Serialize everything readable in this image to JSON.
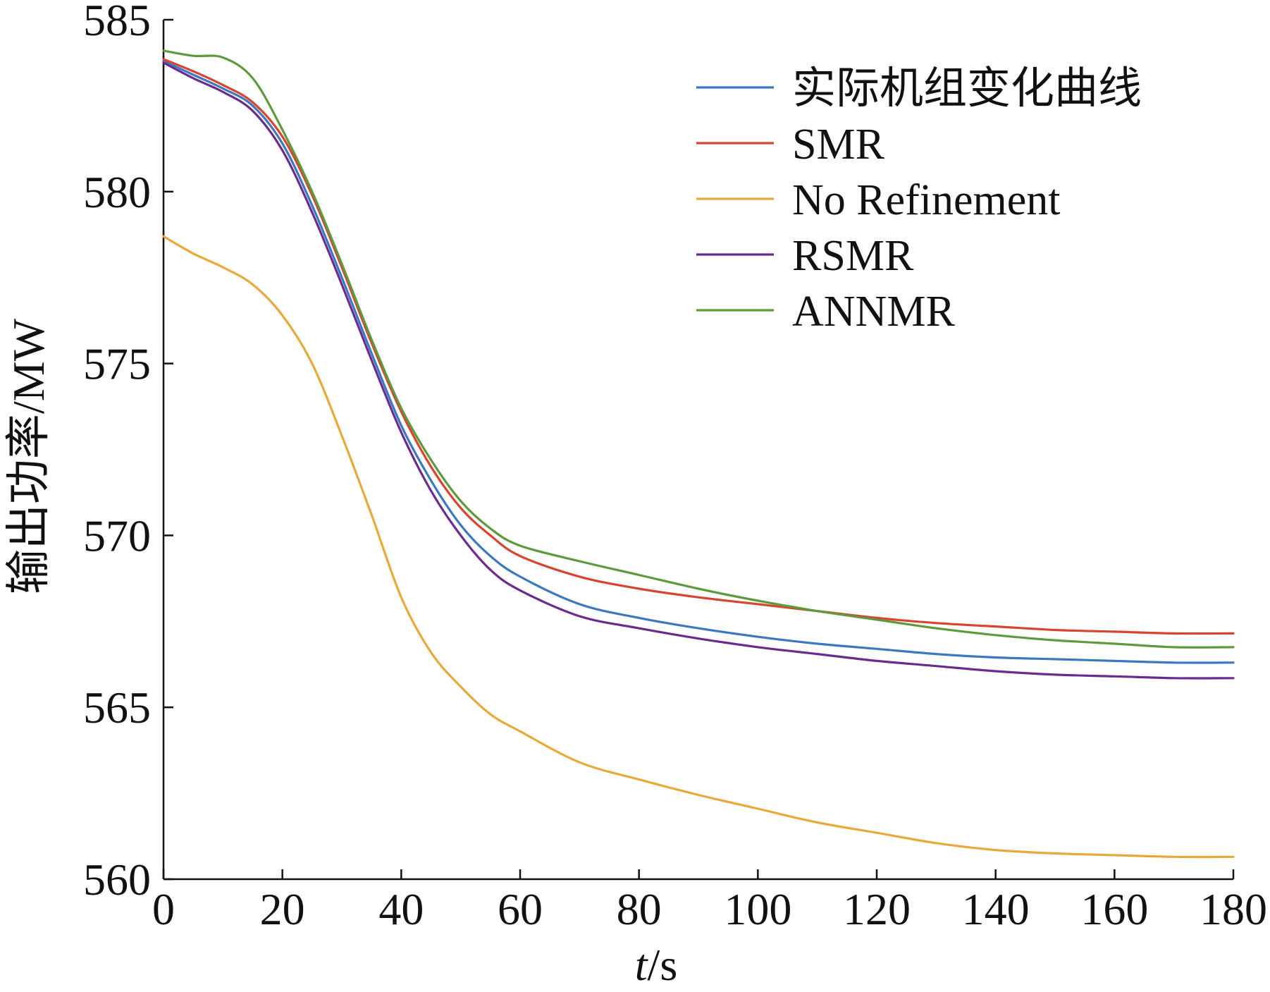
{
  "chart_data": {
    "type": "line",
    "xlabel": "t/s",
    "xlabel_italic_part": "t",
    "xlabel_rest": "/s",
    "ylabel": "输出功率/MW",
    "xlim": [
      0,
      180
    ],
    "ylim": [
      560,
      585
    ],
    "x_ticks": [
      0,
      20,
      40,
      60,
      80,
      100,
      120,
      140,
      160,
      180
    ],
    "y_ticks": [
      560,
      565,
      570,
      575,
      580,
      585
    ],
    "x_tick_labels": [
      "0",
      "20",
      "40",
      "60",
      "80",
      "100",
      "120",
      "140",
      "160",
      "180"
    ],
    "y_tick_labels": [
      "560",
      "565",
      "570",
      "575",
      "580",
      "585"
    ],
    "grid": false,
    "legend_position": "top-right",
    "x": [
      0,
      5,
      10,
      15,
      20,
      25,
      30,
      35,
      40,
      45,
      50,
      55,
      60,
      70,
      80,
      90,
      100,
      110,
      120,
      130,
      140,
      150,
      160,
      170,
      180
    ],
    "series": [
      {
        "name": "实际机组变化曲线",
        "color": "#3a78c0",
        "values": [
          583.8,
          583.4,
          583.0,
          582.5,
          581.4,
          579.6,
          577.5,
          575.3,
          573.2,
          571.6,
          570.3,
          569.4,
          568.8,
          568.0,
          567.6,
          567.3,
          567.05,
          566.85,
          566.7,
          566.55,
          566.45,
          566.4,
          566.35,
          566.3,
          566.3
        ]
      },
      {
        "name": "SMR",
        "color": "#d84430",
        "values": [
          583.85,
          583.5,
          583.1,
          582.6,
          581.6,
          579.9,
          577.8,
          575.6,
          573.6,
          572.0,
          570.8,
          570.0,
          569.4,
          568.8,
          568.45,
          568.2,
          568.0,
          567.8,
          567.6,
          567.45,
          567.35,
          567.25,
          567.2,
          567.15,
          567.15
        ]
      },
      {
        "name": "No Refinement",
        "color": "#e8a93a",
        "values": [
          578.7,
          578.2,
          577.8,
          577.3,
          576.4,
          575.0,
          572.9,
          570.6,
          568.2,
          566.6,
          565.6,
          564.8,
          564.3,
          563.4,
          562.9,
          562.45,
          562.05,
          561.65,
          561.35,
          561.05,
          560.85,
          560.75,
          560.7,
          560.65,
          560.65
        ]
      },
      {
        "name": "RSMR",
        "color": "#6b2a8e",
        "values": [
          583.75,
          583.3,
          582.9,
          582.35,
          581.2,
          579.4,
          577.3,
          575.1,
          573.0,
          571.3,
          570.0,
          569.0,
          568.4,
          567.65,
          567.3,
          567.0,
          566.75,
          566.55,
          566.35,
          566.2,
          566.05,
          565.95,
          565.9,
          565.85,
          565.85
        ]
      },
      {
        "name": "ANNMR",
        "color": "#5e9a3c",
        "values": [
          584.1,
          583.95,
          583.9,
          583.3,
          581.8,
          580.0,
          577.9,
          575.7,
          573.7,
          572.2,
          571.0,
          570.2,
          569.7,
          569.25,
          568.85,
          568.45,
          568.1,
          567.8,
          567.55,
          567.3,
          567.1,
          566.95,
          566.85,
          566.75,
          566.75
        ]
      }
    ]
  }
}
